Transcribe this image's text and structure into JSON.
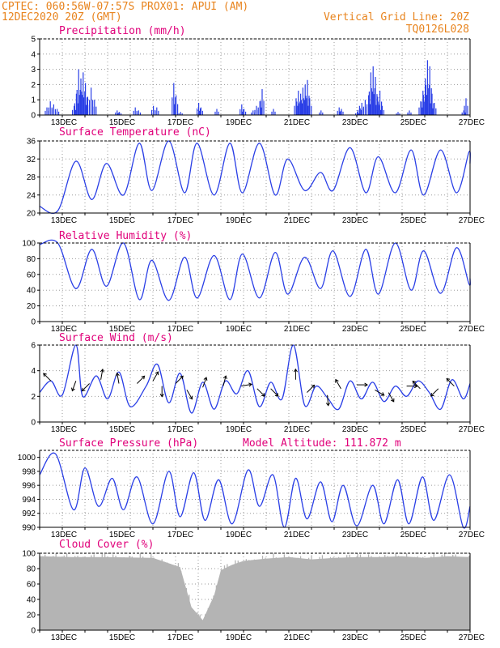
{
  "header": {
    "line1_left": "CPTEC:   060:56W-07:57S   PROX01: APUI (AM)",
    "line2_left": "12DEC2020 20Z (GMT)",
    "line1_right": "Vertical Grid Line: 20Z",
    "line2_right": "TQ0126L028"
  },
  "colors": {
    "header": "#e8841e",
    "panel_title": "#e0007a",
    "series": "#2a3fe6",
    "cloud": "#b4b4b4"
  },
  "chart_data": [
    {
      "type": "bar",
      "title": "Precipitation (mm/h)",
      "ylim": [
        0,
        5
      ],
      "yticks": [
        "0",
        "1",
        "2",
        "3",
        "4",
        "5"
      ],
      "xticks": [
        "13DEC",
        "15DEC",
        "17DEC",
        "19DEC",
        "21DEC",
        "23DEC",
        "25DEC",
        "27DEC"
      ],
      "events": [
        {
          "x": 0.3,
          "y": 0.5
        },
        {
          "x": 0.45,
          "y": 0.9
        },
        {
          "x": 0.6,
          "y": 0.7
        },
        {
          "x": 0.75,
          "y": 0.4
        },
        {
          "x": 1.5,
          "y": 0.6
        },
        {
          "x": 1.6,
          "y": 1.4
        },
        {
          "x": 1.7,
          "y": 3.0
        },
        {
          "x": 1.8,
          "y": 2.4
        },
        {
          "x": 1.9,
          "y": 2.8
        },
        {
          "x": 2.0,
          "y": 2.1
        },
        {
          "x": 2.1,
          "y": 1.2
        },
        {
          "x": 2.25,
          "y": 1.8
        },
        {
          "x": 2.4,
          "y": 1.0
        },
        {
          "x": 3.4,
          "y": 0.3
        },
        {
          "x": 3.5,
          "y": 0.2
        },
        {
          "x": 4.2,
          "y": 0.5
        },
        {
          "x": 4.35,
          "y": 0.3
        },
        {
          "x": 5.0,
          "y": 0.6
        },
        {
          "x": 5.15,
          "y": 0.5
        },
        {
          "x": 5.9,
          "y": 2.1
        },
        {
          "x": 6.0,
          "y": 1.3
        },
        {
          "x": 6.2,
          "y": 0.2
        },
        {
          "x": 7.0,
          "y": 0.8
        },
        {
          "x": 7.1,
          "y": 0.5
        },
        {
          "x": 7.8,
          "y": 0.4
        },
        {
          "x": 8.9,
          "y": 0.7
        },
        {
          "x": 9.0,
          "y": 0.4
        },
        {
          "x": 9.4,
          "y": 0.3
        },
        {
          "x": 9.55,
          "y": 0.6
        },
        {
          "x": 9.7,
          "y": 0.9
        },
        {
          "x": 9.8,
          "y": 1.7
        },
        {
          "x": 10.3,
          "y": 0.4
        },
        {
          "x": 11.3,
          "y": 1.1
        },
        {
          "x": 11.4,
          "y": 1.6
        },
        {
          "x": 11.5,
          "y": 1.4
        },
        {
          "x": 11.6,
          "y": 1.8
        },
        {
          "x": 11.7,
          "y": 2.0
        },
        {
          "x": 11.8,
          "y": 2.3
        },
        {
          "x": 11.9,
          "y": 1.1
        },
        {
          "x": 12.4,
          "y": 0.3
        },
        {
          "x": 13.2,
          "y": 0.5
        },
        {
          "x": 13.3,
          "y": 0.4
        },
        {
          "x": 14.0,
          "y": 0.2
        },
        {
          "x": 14.1,
          "y": 0.6
        },
        {
          "x": 14.2,
          "y": 0.8
        },
        {
          "x": 14.35,
          "y": 1.0
        },
        {
          "x": 14.5,
          "y": 1.3
        },
        {
          "x": 14.6,
          "y": 2.8
        },
        {
          "x": 14.7,
          "y": 3.2
        },
        {
          "x": 14.8,
          "y": 2.5
        },
        {
          "x": 14.9,
          "y": 1.2
        },
        {
          "x": 15.0,
          "y": 1.6
        },
        {
          "x": 15.1,
          "y": 0.6
        },
        {
          "x": 15.8,
          "y": 0.2
        },
        {
          "x": 16.3,
          "y": 0.3
        },
        {
          "x": 16.8,
          "y": 0.9
        },
        {
          "x": 16.9,
          "y": 1.6
        },
        {
          "x": 17.0,
          "y": 2.4
        },
        {
          "x": 17.1,
          "y": 3.6
        },
        {
          "x": 17.2,
          "y": 3.2
        },
        {
          "x": 17.3,
          "y": 1.4
        },
        {
          "x": 17.4,
          "y": 0.8
        },
        {
          "x": 18.7,
          "y": 0.3
        },
        {
          "x": 18.8,
          "y": 1.1
        }
      ]
    },
    {
      "type": "line",
      "title": "Surface Temperature (nC)",
      "ylim": [
        20,
        36
      ],
      "yticks": [
        "20",
        "24",
        "28",
        "32",
        "36"
      ],
      "xticks": [
        "13DEC",
        "15DEC",
        "17DEC",
        "19DEC",
        "21DEC",
        "23DEC",
        "25DEC",
        "27DEC"
      ],
      "x": [
        0,
        0.8,
        1.6,
        2.3,
        2.95,
        3.7,
        4.4,
        4.95,
        5.7,
        6.4,
        6.95,
        7.7,
        8.4,
        8.95,
        9.7,
        10.4,
        10.95,
        11.7,
        12.4,
        12.95,
        13.7,
        14.4,
        14.95,
        15.7,
        16.4,
        16.95,
        17.7,
        18.4,
        18.95,
        19.0
      ],
      "values": [
        21.5,
        20.5,
        31.5,
        23.0,
        31.0,
        24.0,
        35.5,
        25.0,
        36.0,
        24.5,
        35.5,
        24.0,
        35.5,
        24.5,
        35.5,
        24.0,
        32.0,
        25.0,
        29.0,
        25.0,
        34.5,
        24.5,
        32.5,
        24.5,
        34.0,
        24.0,
        34.0,
        24.5,
        33.5,
        31.0
      ]
    },
    {
      "type": "line",
      "title": "Relative Humidity (%)",
      "ylim": [
        0,
        100
      ],
      "yticks": [
        "0",
        "20",
        "40",
        "60",
        "80",
        "100"
      ],
      "xticks": [
        "13DEC",
        "15DEC",
        "17DEC",
        "19DEC",
        "21DEC",
        "23DEC",
        "25DEC",
        "27DEC"
      ],
      "x": [
        0,
        0.8,
        1.6,
        2.3,
        2.95,
        3.7,
        4.4,
        4.95,
        5.7,
        6.4,
        6.95,
        7.7,
        8.4,
        8.95,
        9.7,
        10.4,
        10.95,
        11.7,
        12.4,
        12.95,
        13.7,
        14.4,
        14.95,
        15.7,
        16.4,
        16.95,
        17.7,
        18.4,
        18.95,
        19.0
      ],
      "values": [
        98,
        100,
        42,
        92,
        45,
        100,
        28,
        78,
        27,
        82,
        30,
        84,
        28,
        86,
        30,
        88,
        35,
        82,
        42,
        90,
        32,
        92,
        35,
        100,
        40,
        90,
        36,
        94,
        48,
        55
      ]
    },
    {
      "type": "line",
      "title": "Surface Wind (m/s)",
      "ylim": [
        0,
        6
      ],
      "yticks": [
        "0",
        "2",
        "4",
        "6"
      ],
      "xticks": [
        "13DEC",
        "15DEC",
        "17DEC",
        "19DEC",
        "21DEC",
        "23DEC",
        "25DEC",
        "27DEC"
      ],
      "x": [
        0,
        0.5,
        1.0,
        1.6,
        1.9,
        2.5,
        3.0,
        3.5,
        4.0,
        4.7,
        5.2,
        5.7,
        6.2,
        6.7,
        7.2,
        7.7,
        8.2,
        8.7,
        9.2,
        9.7,
        10.2,
        10.7,
        11.2,
        11.7,
        12.2,
        12.7,
        13.2,
        13.7,
        14.2,
        14.7,
        15.2,
        15.7,
        16.2,
        16.7,
        17.2,
        17.7,
        18.2,
        18.7,
        19.0
      ],
      "values": [
        2.3,
        3.2,
        2.1,
        6.0,
        2.0,
        3.6,
        1.8,
        3.9,
        1.2,
        2.8,
        4.5,
        1.5,
        3.8,
        0.7,
        3.1,
        1.0,
        3.2,
        2.2,
        4.0,
        1.2,
        3.1,
        1.8,
        6.0,
        1.3,
        2.8,
        1.9,
        1.0,
        3.2,
        1.8,
        3.1,
        1.6,
        2.8,
        2.0,
        3.2,
        2.3,
        1.0,
        3.3,
        1.8,
        3.0
      ],
      "arrows": [
        {
          "x": 0.5,
          "y": 3.2,
          "dir": 135
        },
        {
          "x": 1.6,
          "y": 3.2,
          "dir": 250
        },
        {
          "x": 2.2,
          "y": 3.0,
          "dir": 225
        },
        {
          "x": 2.7,
          "y": 3.3,
          "dir": 80
        },
        {
          "x": 3.5,
          "y": 3.0,
          "dir": 100
        },
        {
          "x": 4.3,
          "y": 3.0,
          "dir": 45
        },
        {
          "x": 5.0,
          "y": 3.2,
          "dir": 60
        },
        {
          "x": 5.4,
          "y": 2.8,
          "dir": 270
        },
        {
          "x": 6.0,
          "y": 3.0,
          "dir": 45
        },
        {
          "x": 6.5,
          "y": 2.5,
          "dir": 300
        },
        {
          "x": 7.2,
          "y": 2.7,
          "dir": 70
        },
        {
          "x": 8.1,
          "y": 2.8,
          "dir": 75
        },
        {
          "x": 8.9,
          "y": 2.8,
          "dir": 10
        },
        {
          "x": 9.6,
          "y": 2.6,
          "dir": 315
        },
        {
          "x": 10.2,
          "y": 2.6,
          "dir": 315
        },
        {
          "x": 11.3,
          "y": 3.3,
          "dir": 90
        },
        {
          "x": 11.8,
          "y": 2.3,
          "dir": 45
        },
        {
          "x": 12.7,
          "y": 2.1,
          "dir": 275
        },
        {
          "x": 13.3,
          "y": 2.6,
          "dir": 120
        },
        {
          "x": 14.0,
          "y": 2.9,
          "dir": 0
        },
        {
          "x": 14.8,
          "y": 2.5,
          "dir": 330
        },
        {
          "x": 15.4,
          "y": 2.3,
          "dir": 300
        },
        {
          "x": 16.2,
          "y": 2.8,
          "dir": 0
        },
        {
          "x": 16.8,
          "y": 2.6,
          "dir": 135
        },
        {
          "x": 17.6,
          "y": 2.6,
          "dir": 225
        },
        {
          "x": 18.3,
          "y": 2.8,
          "dir": 135
        }
      ]
    },
    {
      "type": "line",
      "title": "Surface Pressure (hPa)",
      "annotation": "Model Altitude: 111.872 m",
      "ylim": [
        990,
        1001
      ],
      "yticks": [
        "990",
        "992",
        "994",
        "996",
        "998",
        "1000"
      ],
      "xticks": [
        "13DEC",
        "15DEC",
        "17DEC",
        "19DEC",
        "21DEC",
        "23DEC",
        "25DEC",
        "27DEC"
      ],
      "x": [
        0,
        0.7,
        1.5,
        2.0,
        2.6,
        3.2,
        3.7,
        4.3,
        5.0,
        5.7,
        6.2,
        6.8,
        7.3,
        7.9,
        8.5,
        9.2,
        9.7,
        10.3,
        10.8,
        11.3,
        11.8,
        12.4,
        12.9,
        13.4,
        14.0,
        14.7,
        15.2,
        15.8,
        16.3,
        16.9,
        17.4,
        18.1,
        18.7,
        19.0
      ],
      "values": [
        997.5,
        1000.5,
        992.5,
        998.5,
        993.0,
        997.0,
        992.5,
        997.2,
        990.5,
        998.0,
        991.5,
        997.8,
        991.0,
        996.8,
        990.5,
        998.2,
        993.0,
        997.5,
        990.0,
        997.0,
        991.2,
        996.5,
        990.8,
        996.0,
        990.2,
        996.0,
        990.5,
        996.8,
        990.5,
        997.2,
        991.0,
        997.5,
        990.0,
        993.0
      ]
    },
    {
      "type": "area",
      "title": "Cloud Cover (%)",
      "ylim": [
        0,
        100
      ],
      "yticks": [
        "0",
        "20",
        "40",
        "60",
        "80",
        "100"
      ],
      "xticks": [
        "13DEC",
        "15DEC",
        "17DEC",
        "19DEC",
        "21DEC",
        "23DEC",
        "25DEC",
        "27DEC"
      ],
      "x": [
        0,
        1.5,
        3.0,
        5.0,
        6.2,
        6.7,
        7.2,
        7.7,
        8.0,
        8.5,
        9.0,
        10.0,
        11.0,
        12.0,
        13.0,
        14.0,
        15.0,
        16.0,
        17.0,
        18.0,
        19.0
      ],
      "values": [
        96,
        95,
        95,
        94,
        82,
        30,
        13,
        45,
        78,
        85,
        90,
        93,
        95,
        92,
        94,
        95,
        95,
        96,
        94,
        96,
        95
      ]
    }
  ]
}
